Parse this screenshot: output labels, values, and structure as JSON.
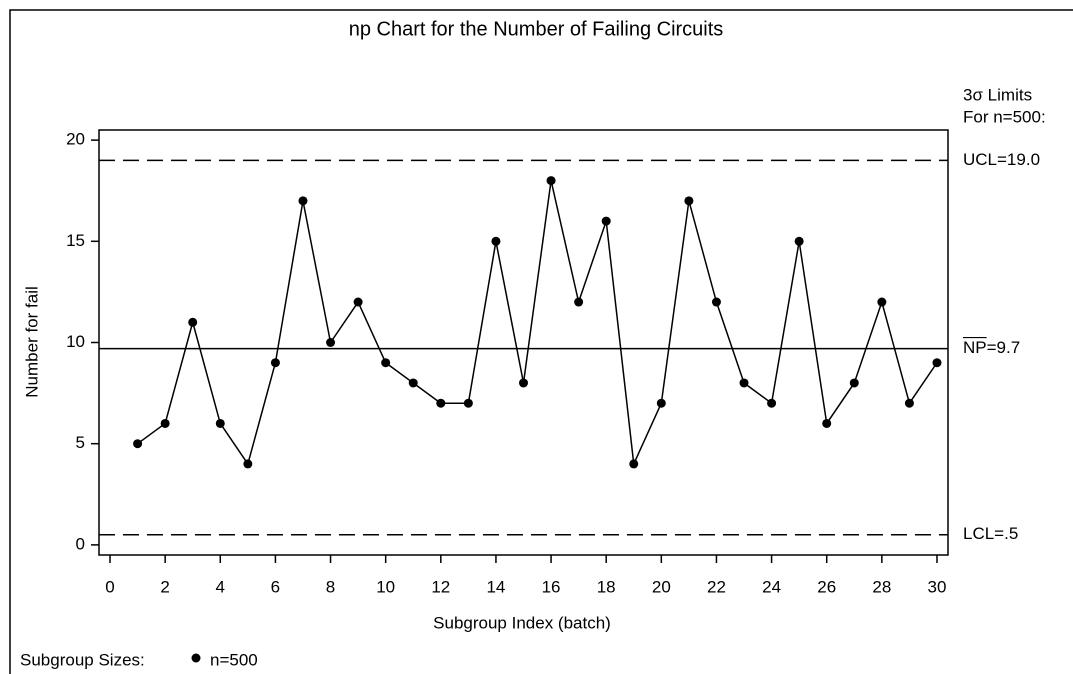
{
  "chart_data": {
    "type": "line",
    "title": "np Chart for the Number of Failing Circuits",
    "x_label": "Subgroup Index (batch)",
    "y_label": "Number for fail",
    "x": [
      1,
      2,
      3,
      4,
      5,
      6,
      7,
      8,
      9,
      10,
      11,
      12,
      13,
      14,
      15,
      16,
      17,
      18,
      19,
      20,
      21,
      22,
      23,
      24,
      25,
      26,
      27,
      28,
      29,
      30
    ],
    "series": [
      {
        "name": "n=500",
        "color": "#000000",
        "values": [
          5,
          6,
          11,
          6,
          4,
          9,
          17,
          10,
          12,
          9,
          8,
          7,
          7,
          15,
          8,
          18,
          12,
          16,
          4,
          7,
          17,
          12,
          8,
          7,
          15,
          6,
          8,
          12,
          7,
          9
        ]
      }
    ],
    "xlim": [
      -0.4,
      30.4
    ],
    "xticks": [
      0,
      2,
      4,
      6,
      8,
      10,
      12,
      14,
      16,
      18,
      20,
      22,
      24,
      26,
      28,
      30
    ],
    "ylim": [
      -0.5,
      20.5
    ],
    "yticks": [
      0,
      5,
      10,
      15,
      20
    ],
    "limits_header": [
      "3σ Limits",
      "For n=500:"
    ],
    "limits": [
      {
        "name": "UCL",
        "value": 19.0,
        "label": "UCL=19.0",
        "dashed": true,
        "overline": false
      },
      {
        "name": "NP",
        "value": 9.7,
        "label": "NP=9.7",
        "dashed": false,
        "overline": true
      },
      {
        "name": "LCL",
        "value": 0.5,
        "label": "LCL=.5",
        "dashed": true,
        "overline": false
      }
    ],
    "legend_title": "Subgroup Sizes:"
  }
}
